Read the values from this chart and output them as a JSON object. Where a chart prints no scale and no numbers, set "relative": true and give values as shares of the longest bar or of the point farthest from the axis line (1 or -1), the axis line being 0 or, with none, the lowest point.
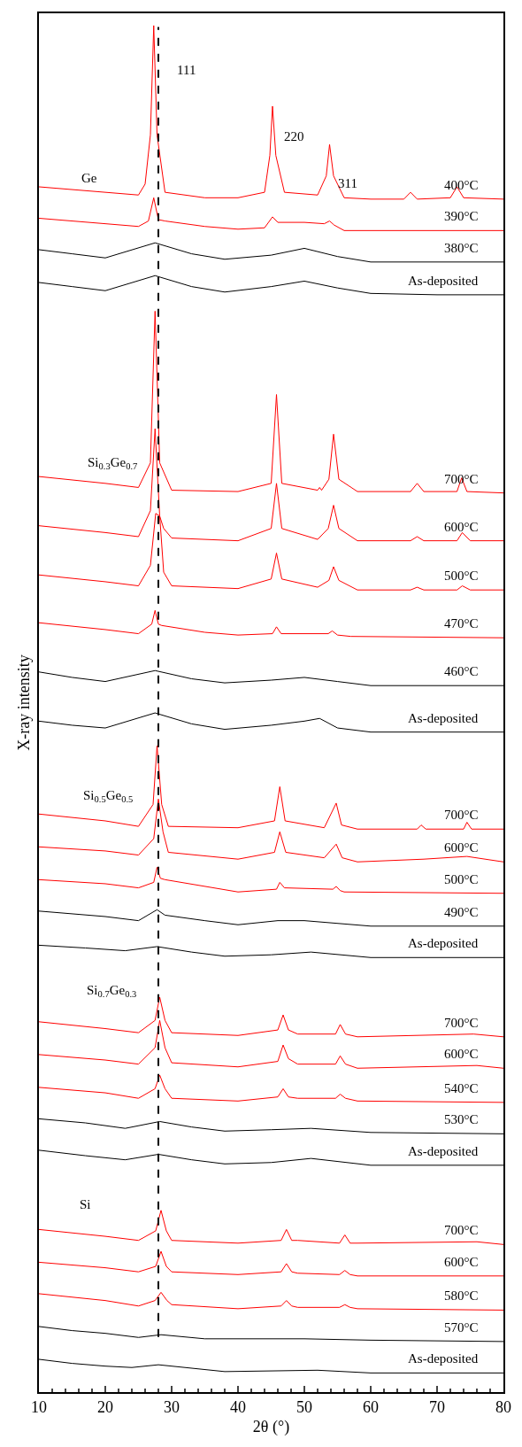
{
  "chart_data": {
    "type": "line",
    "relative": true,
    "xlabel": "2θ (°)",
    "ylabel": "X-ray intensity",
    "xlim": [
      10,
      80
    ],
    "xticks": [
      10,
      20,
      30,
      40,
      50,
      60,
      70,
      80
    ],
    "legend": false,
    "marker": "none",
    "line_style": "solid",
    "ref_lines": [
      {
        "axis": "x",
        "value": 28,
        "label": null,
        "color": "#000000",
        "line_style": "dashed"
      }
    ],
    "annotations": [
      "111",
      "220",
      "311",
      "Ge",
      "Si$_{0.3}$Ge$_{0.7}$",
      "Si$_{0.5}$Ge$_{0.5}$",
      "Si$_{0.7}$Ge$_{0.3}$",
      "Si"
    ],
    "series": [
      {
        "name": "400°C",
        "color": "#ff0000",
        "x": [
          10,
          20,
          25,
          26,
          26.8,
          27.3,
          27.8,
          29,
          35,
          40,
          44,
          44.8,
          45.2,
          45.7,
          47,
          52,
          53.3,
          53.8,
          54.4,
          56,
          60,
          65,
          66,
          67,
          72,
          73,
          74,
          80
        ],
        "values": [
          0.882,
          0.878,
          0.876,
          0.884,
          0.92,
          1.0,
          0.92,
          0.878,
          0.874,
          0.874,
          0.878,
          0.905,
          0.941,
          0.905,
          0.878,
          0.876,
          0.89,
          0.913,
          0.89,
          0.874,
          0.873,
          0.873,
          0.878,
          0.873,
          0.874,
          0.882,
          0.874,
          0.873
        ]
      },
      {
        "name": "390°C",
        "color": "#ff0000",
        "x": [
          10,
          20,
          25,
          26.5,
          27.3,
          28,
          29,
          35,
          40,
          44,
          45.2,
          46,
          50,
          53,
          53.8,
          54.5,
          56,
          60,
          80
        ],
        "values": [
          0.859,
          0.855,
          0.853,
          0.857,
          0.874,
          0.858,
          0.857,
          0.853,
          0.851,
          0.852,
          0.86,
          0.856,
          0.856,
          0.855,
          0.857,
          0.854,
          0.85,
          0.85,
          0.85
        ]
      },
      {
        "name": "380°C",
        "color": "#000000",
        "x": [
          10,
          15,
          20,
          27.5,
          33,
          38,
          45,
          50,
          55,
          60,
          70,
          80
        ],
        "values": [
          0.836,
          0.833,
          0.83,
          0.841,
          0.833,
          0.829,
          0.832,
          0.837,
          0.831,
          0.827,
          0.827,
          0.827
        ]
      },
      {
        "name": "As-deposited",
        "color": "#000000",
        "x": [
          10,
          15,
          20,
          27.5,
          33,
          38,
          45,
          50,
          55,
          60,
          70,
          80
        ],
        "values": [
          0.812,
          0.809,
          0.806,
          0.817,
          0.809,
          0.805,
          0.809,
          0.813,
          0.808,
          0.804,
          0.803,
          0.803
        ]
      },
      {
        "name": "700°C",
        "color": "#ff0000",
        "x": [
          10,
          20,
          25,
          26.8,
          27.5,
          28.2,
          30,
          40,
          45,
          45.8,
          46.6,
          52,
          52.3,
          52.6,
          53.7,
          54.4,
          55.2,
          58,
          66,
          67,
          68,
          73,
          73.7,
          74.5,
          80
        ],
        "values": [
          0.67,
          0.665,
          0.662,
          0.68,
          0.791,
          0.68,
          0.66,
          0.659,
          0.665,
          0.73,
          0.665,
          0.66,
          0.662,
          0.66,
          0.668,
          0.701,
          0.668,
          0.659,
          0.659,
          0.665,
          0.659,
          0.659,
          0.669,
          0.659,
          0.658
        ]
      },
      {
        "name": "600°C",
        "color": "#ff0000",
        "x": [
          10,
          20,
          25,
          26.8,
          27.5,
          28.2,
          28.8,
          30,
          40,
          45,
          45.8,
          46.6,
          52,
          53.6,
          54.4,
          55.2,
          58,
          66,
          67,
          68,
          73,
          73.8,
          75,
          80
        ],
        "values": [
          0.634,
          0.629,
          0.626,
          0.645,
          0.705,
          0.641,
          0.632,
          0.625,
          0.623,
          0.632,
          0.665,
          0.632,
          0.624,
          0.632,
          0.649,
          0.632,
          0.623,
          0.623,
          0.626,
          0.623,
          0.623,
          0.629,
          0.623,
          0.623
        ]
      },
      {
        "name": "500°C",
        "color": "#ff0000",
        "x": [
          10,
          20,
          25,
          26.8,
          27.6,
          28.2,
          28.8,
          30,
          40,
          45,
          45.8,
          46.6,
          52,
          53.7,
          54.4,
          55.2,
          58,
          66,
          67,
          68,
          73,
          73.8,
          75,
          80
        ],
        "values": [
          0.598,
          0.593,
          0.59,
          0.605,
          0.643,
          0.641,
          0.6,
          0.59,
          0.588,
          0.595,
          0.614,
          0.595,
          0.589,
          0.594,
          0.604,
          0.594,
          0.587,
          0.587,
          0.589,
          0.587,
          0.587,
          0.59,
          0.587,
          0.587
        ]
      },
      {
        "name": "470°C",
        "color": "#ff0000",
        "x": [
          10,
          20,
          25,
          27,
          27.5,
          28,
          28.5,
          35,
          40,
          45.2,
          45.8,
          46.5,
          50,
          53.6,
          54.2,
          55,
          57,
          80
        ],
        "values": [
          0.563,
          0.558,
          0.555,
          0.562,
          0.572,
          0.562,
          0.561,
          0.556,
          0.554,
          0.555,
          0.56,
          0.555,
          0.555,
          0.555,
          0.557,
          0.554,
          0.553,
          0.552
        ]
      },
      {
        "name": "460°C",
        "color": "#000000",
        "x": [
          10,
          15,
          20,
          27.5,
          33,
          38,
          45,
          50,
          55,
          60,
          70,
          80
        ],
        "values": [
          0.527,
          0.523,
          0.52,
          0.528,
          0.522,
          0.519,
          0.521,
          0.523,
          0.52,
          0.517,
          0.517,
          0.517
        ]
      },
      {
        "name": "As-deposited",
        "color": "#000000",
        "x": [
          10,
          15,
          20,
          27.5,
          33,
          38,
          45,
          50,
          52.3,
          55,
          60,
          70,
          80
        ],
        "values": [
          0.491,
          0.488,
          0.486,
          0.497,
          0.489,
          0.485,
          0.488,
          0.491,
          0.493,
          0.486,
          0.483,
          0.483,
          0.483
        ]
      },
      {
        "name": "700°C",
        "color": "#ff0000",
        "x": [
          10,
          20,
          25,
          27.2,
          27.8,
          28.5,
          29.5,
          40,
          45.5,
          46.3,
          47.1,
          53,
          54.8,
          55.6,
          58,
          67,
          67.6,
          68.3,
          74,
          74.5,
          75.2,
          80
        ],
        "values": [
          0.423,
          0.418,
          0.414,
          0.43,
          0.473,
          0.43,
          0.414,
          0.413,
          0.418,
          0.443,
          0.418,
          0.413,
          0.431,
          0.415,
          0.412,
          0.412,
          0.415,
          0.412,
          0.412,
          0.417,
          0.412,
          0.412
        ]
      },
      {
        "name": "600°C",
        "color": "#ff0000",
        "x": [
          10,
          20,
          25,
          27.3,
          28,
          28.7,
          29.5,
          40,
          45.5,
          46.3,
          47.2,
          53,
          54.8,
          55.7,
          58,
          68,
          74.5,
          80
        ],
        "values": [
          0.399,
          0.396,
          0.393,
          0.405,
          0.434,
          0.41,
          0.395,
          0.39,
          0.395,
          0.41,
          0.395,
          0.391,
          0.401,
          0.391,
          0.388,
          0.39,
          0.392,
          0.388
        ]
      },
      {
        "name": "500°C",
        "color": "#ff0000",
        "x": [
          10,
          20,
          25,
          27.3,
          27.8,
          28.3,
          29,
          40,
          45.8,
          46.3,
          47,
          54.3,
          54.8,
          55.4,
          56,
          80
        ],
        "values": [
          0.375,
          0.372,
          0.369,
          0.373,
          0.384,
          0.376,
          0.375,
          0.366,
          0.368,
          0.373,
          0.369,
          0.368,
          0.37,
          0.367,
          0.366,
          0.365
        ]
      },
      {
        "name": "490°C",
        "color": "#000000",
        "x": [
          10,
          20,
          25,
          27.8,
          29,
          35,
          40,
          46,
          50,
          60,
          80
        ],
        "values": [
          0.352,
          0.348,
          0.345,
          0.353,
          0.349,
          0.345,
          0.342,
          0.345,
          0.345,
          0.341,
          0.341
        ]
      },
      {
        "name": "As-deposited",
        "color": "#000000",
        "x": [
          10,
          17,
          23,
          27.8,
          33,
          38,
          45,
          51,
          60,
          80
        ],
        "values": [
          0.327,
          0.325,
          0.323,
          0.326,
          0.322,
          0.319,
          0.32,
          0.322,
          0.318,
          0.318
        ]
      },
      {
        "name": "700°C",
        "color": "#ff0000",
        "x": [
          10,
          20,
          25,
          27.5,
          28.2,
          29,
          30,
          40,
          46,
          46.8,
          47.6,
          49,
          54.7,
          55.4,
          56.2,
          58,
          75.5,
          80
        ],
        "values": [
          0.271,
          0.266,
          0.263,
          0.272,
          0.289,
          0.272,
          0.263,
          0.261,
          0.265,
          0.276,
          0.265,
          0.262,
          0.262,
          0.269,
          0.262,
          0.26,
          0.262,
          0.26
        ]
      },
      {
        "name": "600°C",
        "color": "#ff0000",
        "x": [
          10,
          20,
          25,
          27.5,
          28.2,
          29,
          30,
          40,
          46,
          46.8,
          47.6,
          49,
          54.7,
          55.4,
          56.2,
          58,
          76,
          80
        ],
        "values": [
          0.247,
          0.243,
          0.24,
          0.252,
          0.272,
          0.252,
          0.241,
          0.238,
          0.242,
          0.254,
          0.244,
          0.24,
          0.24,
          0.246,
          0.24,
          0.237,
          0.239,
          0.237
        ]
      },
      {
        "name": "540°C",
        "color": "#ff0000",
        "x": [
          10,
          20,
          25,
          27.5,
          28.2,
          29,
          30,
          40,
          46,
          46.8,
          47.6,
          49,
          54.7,
          55.4,
          56.2,
          58,
          80
        ],
        "values": [
          0.223,
          0.219,
          0.215,
          0.222,
          0.232,
          0.222,
          0.215,
          0.213,
          0.216,
          0.222,
          0.216,
          0.215,
          0.215,
          0.218,
          0.215,
          0.213,
          0.212
        ]
      },
      {
        "name": "530°C",
        "color": "#000000",
        "x": [
          10,
          17,
          23,
          28.2,
          33,
          38,
          45,
          51,
          60,
          80
        ],
        "values": [
          0.2,
          0.197,
          0.193,
          0.198,
          0.194,
          0.191,
          0.192,
          0.193,
          0.19,
          0.189
        ]
      },
      {
        "name": "As-deposited",
        "color": "#000000",
        "x": [
          10,
          17,
          23,
          28,
          33,
          38,
          45,
          51,
          60,
          80
        ],
        "values": [
          0.177,
          0.173,
          0.17,
          0.174,
          0.17,
          0.167,
          0.168,
          0.171,
          0.166,
          0.166
        ]
      },
      {
        "name": "700°C",
        "color": "#ff0000",
        "x": [
          10,
          20,
          25,
          27.6,
          28.4,
          29.2,
          30,
          40,
          46.5,
          47.3,
          48.1,
          49,
          55.3,
          56.1,
          56.9,
          58,
          76,
          80
        ],
        "values": [
          0.119,
          0.114,
          0.111,
          0.118,
          0.133,
          0.118,
          0.111,
          0.109,
          0.111,
          0.119,
          0.111,
          0.111,
          0.109,
          0.115,
          0.109,
          0.109,
          0.11,
          0.108
        ]
      },
      {
        "name": "600°C",
        "color": "#ff0000",
        "x": [
          10,
          20,
          25,
          27.6,
          28.4,
          29.2,
          30,
          40,
          46.5,
          47.3,
          48.1,
          49,
          55.3,
          56.1,
          56.9,
          58,
          80
        ],
        "values": [
          0.095,
          0.091,
          0.088,
          0.092,
          0.103,
          0.092,
          0.088,
          0.086,
          0.088,
          0.094,
          0.088,
          0.087,
          0.086,
          0.089,
          0.086,
          0.085,
          0.085
        ]
      },
      {
        "name": "580°C",
        "color": "#ff0000",
        "x": [
          10,
          20,
          25,
          27.5,
          28.4,
          29.3,
          30,
          40,
          46.5,
          47.3,
          48.1,
          49,
          55.3,
          56.1,
          56.9,
          58,
          80
        ],
        "values": [
          0.072,
          0.067,
          0.063,
          0.067,
          0.073,
          0.067,
          0.064,
          0.061,
          0.063,
          0.067,
          0.063,
          0.062,
          0.062,
          0.064,
          0.062,
          0.061,
          0.06
        ]
      },
      {
        "name": "570°C",
        "color": "#000000",
        "x": [
          10,
          15,
          20,
          25,
          28.4,
          35,
          50,
          60,
          80
        ],
        "values": [
          0.048,
          0.045,
          0.043,
          0.04,
          0.042,
          0.039,
          0.039,
          0.038,
          0.037
        ]
      },
      {
        "name": "As-deposited",
        "color": "#000000",
        "x": [
          10,
          15,
          20,
          24,
          28,
          38,
          52,
          60,
          80
        ],
        "values": [
          0.024,
          0.021,
          0.019,
          0.018,
          0.02,
          0.015,
          0.016,
          0.014,
          0.014
        ]
      }
    ]
  }
}
